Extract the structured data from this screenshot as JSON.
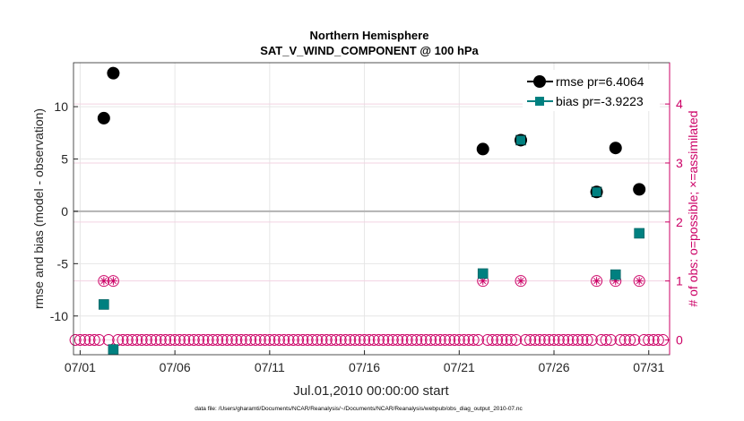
{
  "chart_data": {
    "type": "scatter",
    "title": "Northern Hemisphere",
    "subtitle": "SAT_V_WIND_COMPONENT @ 100 hPa",
    "xlabel": "Jul.01,2010 00:00:00 start",
    "ylabel": "rmse and bias (model - observation)",
    "y2label": "# of obs: o=possible; ×=assimilated",
    "footnote": "data file: /Users/gharamti/Documents/NCAR/Reanalysis/~/Documents/NCAR/Reanalysis/webpub/obs_diag_output_2010-07.nc",
    "xlim": [
      0.65,
      32.1
    ],
    "ylim": [
      -13.7,
      14.2
    ],
    "y2lim": [
      -0.25,
      4.7
    ],
    "x_ticks": [
      1,
      6,
      11,
      16,
      21,
      26,
      31
    ],
    "x_tick_labels": [
      "07/01",
      "07/06",
      "07/11",
      "07/16",
      "07/21",
      "07/26",
      "07/31"
    ],
    "y_ticks": [
      -10,
      -5,
      0,
      5,
      10
    ],
    "y_tick_labels": [
      "-10",
      "-5",
      "0",
      "5",
      "10"
    ],
    "y2_ticks": [
      0,
      1,
      2,
      3,
      4
    ],
    "y2_tick_labels": [
      "0",
      "1",
      "2",
      "3",
      "4"
    ],
    "grid": true,
    "zero_line": 0,
    "legend_position": "top-right",
    "series": [
      {
        "name": "rmse",
        "legend": "rmse pr=6.4064",
        "axis": "left",
        "color": "#000000",
        "x": [
          2.25,
          2.75,
          22.25,
          24.25,
          28.25,
          29.25,
          30.5
        ],
        "values": [
          8.9,
          13.2,
          5.95,
          6.8,
          1.85,
          6.05,
          2.1
        ]
      },
      {
        "name": "bias",
        "legend": "bias pr=-3.9223",
        "axis": "left",
        "color": "#008080",
        "x": [
          2.25,
          2.75,
          22.25,
          24.25,
          28.25,
          29.25,
          30.5
        ],
        "values": [
          -8.9,
          -13.2,
          -5.95,
          6.8,
          1.85,
          -6.05,
          -2.1
        ]
      },
      {
        "name": "possible",
        "axis": "right",
        "color": "#cc0066",
        "x_start": 0.75,
        "x_step": 0.25,
        "count": 125,
        "nonzero_x": [
          2.25,
          2.75,
          22.25,
          24.25,
          28.25,
          29.25,
          30.5
        ],
        "nonzero_values": [
          1,
          1,
          1,
          1,
          1,
          1,
          1
        ]
      }
    ]
  }
}
